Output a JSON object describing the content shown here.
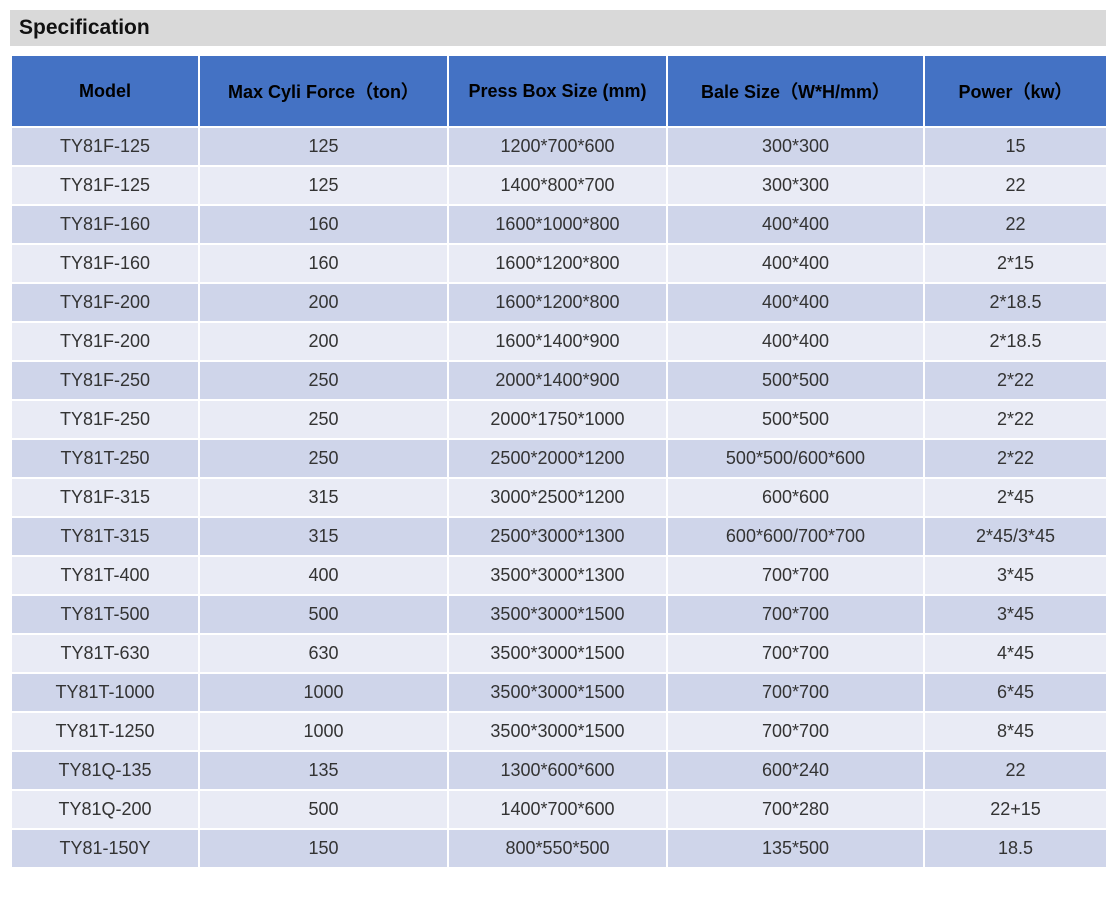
{
  "title": "Specification",
  "colors": {
    "header_bg": "#4472c4",
    "row_odd": "#cfd5ea",
    "row_even": "#e9ebf5",
    "title_bg": "#d9d9d9"
  },
  "table": {
    "headers": [
      "Model",
      "Max Cyli Force（ton）",
      "Press Box Size (mm)",
      "Bale Size（W*H/mm）",
      "Power（kw）"
    ],
    "rows": [
      [
        "TY81F-125",
        "125",
        "1200*700*600",
        "300*300",
        "15"
      ],
      [
        "TY81F-125",
        "125",
        "1400*800*700",
        "300*300",
        "22"
      ],
      [
        "TY81F-160",
        "160",
        "1600*1000*800",
        "400*400",
        "22"
      ],
      [
        "TY81F-160",
        "160",
        "1600*1200*800",
        "400*400",
        "2*15"
      ],
      [
        "TY81F-200",
        "200",
        "1600*1200*800",
        "400*400",
        "2*18.5"
      ],
      [
        "TY81F-200",
        "200",
        "1600*1400*900",
        "400*400",
        "2*18.5"
      ],
      [
        "TY81F-250",
        "250",
        "2000*1400*900",
        "500*500",
        "2*22"
      ],
      [
        "TY81F-250",
        "250",
        "2000*1750*1000",
        "500*500",
        "2*22"
      ],
      [
        "TY81T-250",
        "250",
        "2500*2000*1200",
        "500*500/600*600",
        "2*22"
      ],
      [
        "TY81F-315",
        "315",
        "3000*2500*1200",
        "600*600",
        "2*45"
      ],
      [
        "TY81T-315",
        "315",
        "2500*3000*1300",
        "600*600/700*700",
        "2*45/3*45"
      ],
      [
        "TY81T-400",
        "400",
        "3500*3000*1300",
        "700*700",
        "3*45"
      ],
      [
        "TY81T-500",
        "500",
        "3500*3000*1500",
        "700*700",
        "3*45"
      ],
      [
        "TY81T-630",
        "630",
        "3500*3000*1500",
        "700*700",
        "4*45"
      ],
      [
        "TY81T-1000",
        "1000",
        "3500*3000*1500",
        "700*700",
        "6*45"
      ],
      [
        "TY81T-1250",
        "1000",
        "3500*3000*1500",
        "700*700",
        "8*45"
      ],
      [
        "TY81Q-135",
        "135",
        "1300*600*600",
        "600*240",
        "22"
      ],
      [
        "TY81Q-200",
        "500",
        "1400*700*600",
        "700*280",
        "22+15"
      ],
      [
        "TY81-150Y",
        "150",
        "800*550*500",
        "135*500",
        "18.5"
      ]
    ]
  }
}
